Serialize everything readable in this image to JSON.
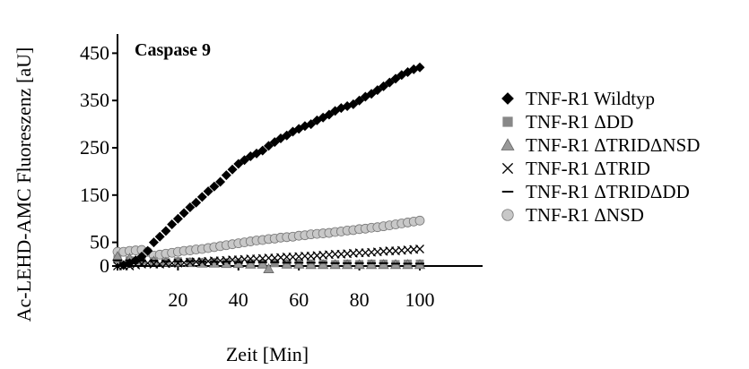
{
  "chart_data": {
    "type": "scatter",
    "title": "Caspase 9",
    "xlabel": "Zeit [Min]",
    "ylabel": "Ac-LEHD-AMC Fluoreszenz [aU]",
    "xlim": [
      0,
      120
    ],
    "ylim": [
      0,
      470
    ],
    "x_ticks": [
      20,
      40,
      60,
      80,
      100
    ],
    "y_ticks": [
      0,
      50,
      150,
      250,
      350,
      450
    ],
    "grid": false,
    "legend_position": "right",
    "series": [
      {
        "name": "TNF-R1 Wildtyp",
        "marker": "diamond",
        "color": "#000000",
        "x": [
          2,
          4,
          6,
          8,
          10,
          12,
          14,
          16,
          18,
          20,
          22,
          24,
          26,
          28,
          30,
          32,
          34,
          36,
          38,
          40,
          42,
          44,
          46,
          48,
          50,
          52,
          54,
          56,
          58,
          60,
          62,
          64,
          66,
          68,
          70,
          72,
          74,
          76,
          78,
          80,
          82,
          84,
          86,
          88,
          90,
          92,
          94,
          96,
          98,
          100
        ],
        "y": [
          2,
          6,
          12,
          20,
          32,
          50,
          62,
          74,
          88,
          100,
          112,
          124,
          134,
          146,
          158,
          168,
          178,
          192,
          204,
          216,
          224,
          232,
          238,
          244,
          254,
          262,
          270,
          276,
          284,
          290,
          296,
          300,
          308,
          314,
          320,
          328,
          334,
          338,
          342,
          350,
          358,
          364,
          372,
          380,
          388,
          396,
          404,
          410,
          416,
          420
        ]
      },
      {
        "name": "TNF-R1 ΔDD",
        "marker": "square",
        "color": "#888888",
        "x": [
          0,
          4,
          8,
          12,
          16,
          20,
          24,
          28,
          32,
          36,
          40,
          44,
          48,
          52,
          56,
          60,
          64,
          68,
          72,
          76,
          80,
          84,
          88,
          92,
          96,
          100
        ],
        "y": [
          14,
          12,
          14,
          10,
          8,
          10,
          9,
          8,
          8,
          7,
          6,
          6,
          5,
          6,
          5,
          6,
          5,
          5,
          4,
          5,
          4,
          5,
          5,
          4,
          5,
          5
        ]
      },
      {
        "name": "TNF-R1 ΔTRIDΔNSD",
        "marker": "triangle",
        "color": "#999999",
        "x": [
          0,
          4,
          8,
          12,
          16,
          20,
          24,
          28,
          32,
          36,
          40,
          44,
          48,
          50,
          56,
          60,
          64,
          68,
          72,
          76,
          80,
          84,
          88,
          92,
          96,
          100
        ],
        "y": [
          20,
          16,
          12,
          10,
          8,
          8,
          7,
          6,
          6,
          5,
          5,
          4,
          4,
          -6,
          4,
          4,
          3,
          3,
          3,
          3,
          3,
          3,
          3,
          3,
          3,
          3
        ]
      },
      {
        "name": "TNF-R1 ΔTRID",
        "marker": "cross",
        "color": "#000000",
        "x": [
          0,
          2,
          4,
          6,
          8,
          10,
          12,
          14,
          16,
          18,
          20,
          22,
          24,
          26,
          28,
          30,
          32,
          34,
          36,
          38,
          40,
          42,
          44,
          46,
          48,
          50,
          52,
          54,
          56,
          58,
          60,
          62,
          64,
          66,
          68,
          70,
          72,
          74,
          76,
          78,
          80,
          82,
          84,
          86,
          88,
          90,
          92,
          94,
          96,
          98,
          100
        ],
        "y": [
          0,
          0,
          0,
          2,
          4,
          6,
          4,
          4,
          5,
          6,
          6,
          7,
          8,
          9,
          9,
          10,
          11,
          11,
          12,
          13,
          13,
          14,
          15,
          15,
          16,
          17,
          17,
          18,
          19,
          19,
          20,
          21,
          21,
          22,
          23,
          24,
          25,
          25,
          26,
          27,
          28,
          28,
          29,
          30,
          31,
          32,
          32,
          33,
          34,
          35,
          36
        ]
      },
      {
        "name": "TNF-R1 ΔTRIDΔDD",
        "marker": "dash",
        "color": "#000000",
        "x": [
          0,
          4,
          8,
          12,
          16,
          20,
          24,
          28,
          32,
          36,
          40,
          44,
          48,
          52,
          56,
          60,
          64,
          68,
          72,
          76,
          80,
          84,
          88,
          92,
          96,
          100
        ],
        "y": [
          12,
          12,
          11,
          11,
          10,
          10,
          10,
          9,
          9,
          9,
          8,
          8,
          8,
          8,
          7,
          7,
          7,
          7,
          6,
          6,
          6,
          6,
          6,
          5,
          5,
          5
        ]
      },
      {
        "name": "TNF-R1 ΔNSD",
        "marker": "circle",
        "color": "#c8c8c8",
        "x": [
          0,
          2,
          4,
          6,
          8,
          10,
          12,
          14,
          16,
          18,
          20,
          22,
          24,
          26,
          28,
          30,
          32,
          34,
          36,
          38,
          40,
          42,
          44,
          46,
          48,
          50,
          52,
          54,
          56,
          58,
          60,
          62,
          64,
          66,
          68,
          70,
          72,
          74,
          76,
          78,
          80,
          82,
          84,
          86,
          88,
          90,
          92,
          94,
          96,
          98,
          100
        ],
        "y": [
          30,
          30,
          32,
          33,
          34,
          30,
          22,
          24,
          26,
          28,
          30,
          32,
          33,
          35,
          36,
          38,
          40,
          42,
          44,
          46,
          48,
          50,
          52,
          54,
          55,
          57,
          58,
          60,
          61,
          62,
          64,
          65,
          67,
          68,
          69,
          70,
          72,
          73,
          75,
          76,
          78,
          79,
          81,
          82,
          84,
          86,
          88,
          90,
          92,
          94,
          96
        ]
      }
    ]
  }
}
